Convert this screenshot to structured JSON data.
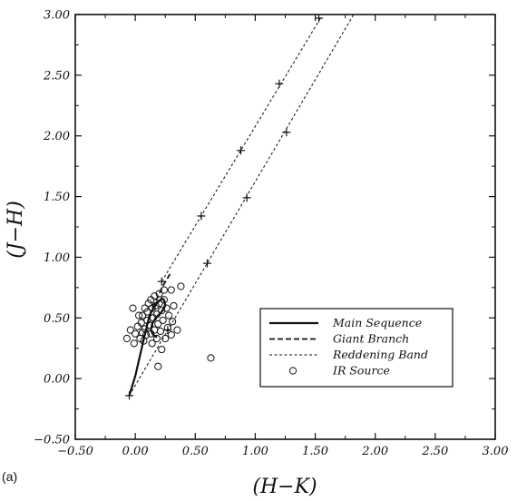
{
  "chart_data": {
    "type": "scatter",
    "panel_label": "(a)",
    "xlabel": "(H−K)",
    "ylabel": "(J−H)",
    "xlim": [
      -0.5,
      3.0
    ],
    "ylim": [
      -0.5,
      3.0
    ],
    "x_ticks": [
      "−0.50",
      "0.00",
      "0.50",
      "1.00",
      "1.50",
      "2.00",
      "2.50",
      "3.00"
    ],
    "y_ticks": [
      "−0.50",
      "0.00",
      "0.50",
      "1.00",
      "1.50",
      "2.00",
      "2.50",
      "3.00"
    ],
    "x_tick_values": [
      -0.5,
      0.0,
      0.5,
      1.0,
      1.5,
      2.0,
      2.5,
      3.0
    ],
    "y_tick_values": [
      -0.5,
      0.0,
      0.5,
      1.0,
      1.5,
      2.0,
      2.5,
      3.0
    ],
    "grid": false,
    "legend_position": "lower-right",
    "series": [
      {
        "name": "Main Sequence",
        "style": "solid",
        "x": [
          -0.05,
          0.0,
          0.03,
          0.06,
          0.08,
          0.09,
          0.1,
          0.12,
          0.15,
          0.18,
          0.2,
          0.22,
          0.24,
          0.25,
          0.22,
          0.17,
          0.14,
          0.13,
          0.15,
          0.18
        ],
        "y": [
          -0.14,
          0.02,
          0.15,
          0.28,
          0.36,
          0.4,
          0.45,
          0.52,
          0.58,
          0.62,
          0.64,
          0.66,
          0.65,
          0.6,
          0.55,
          0.5,
          0.45,
          0.4,
          0.36,
          0.34
        ]
      },
      {
        "name": "Giant Branch",
        "style": "dashed",
        "x": [
          0.12,
          0.15,
          0.18,
          0.2,
          0.22,
          0.24,
          0.27,
          0.3
        ],
        "y": [
          0.52,
          0.6,
          0.66,
          0.7,
          0.74,
          0.78,
          0.83,
          0.88
        ]
      },
      {
        "name": "Reddening Band",
        "style": "dotted",
        "lines": [
          {
            "x": [
              0.22,
              1.55
            ],
            "y": [
              0.8,
              2.98
            ]
          },
          {
            "x": [
              -0.05,
              1.82
            ],
            "y": [
              -0.14,
              3.0
            ]
          }
        ],
        "markers": [
          {
            "x": 0.22,
            "y": 0.8
          },
          {
            "x": 0.55,
            "y": 1.34
          },
          {
            "x": 0.88,
            "y": 1.88
          },
          {
            "x": 1.2,
            "y": 2.43
          },
          {
            "x": 1.53,
            "y": 2.97
          },
          {
            "x": -0.05,
            "y": -0.14
          },
          {
            "x": 0.27,
            "y": 0.4
          },
          {
            "x": 0.6,
            "y": 0.95
          },
          {
            "x": 0.93,
            "y": 1.49
          },
          {
            "x": 1.26,
            "y": 2.03
          }
        ]
      },
      {
        "name": "IR Source",
        "style": "open-circle",
        "points": [
          [
            -0.07,
            0.33
          ],
          [
            -0.04,
            0.4
          ],
          [
            -0.02,
            0.58
          ],
          [
            -0.01,
            0.29
          ],
          [
            0.0,
            0.37
          ],
          [
            0.02,
            0.43
          ],
          [
            0.04,
            0.33
          ],
          [
            0.05,
            0.46
          ],
          [
            0.06,
            0.52
          ],
          [
            0.06,
            0.38
          ],
          [
            0.07,
            0.31
          ],
          [
            0.08,
            0.41
          ],
          [
            0.09,
            0.36
          ],
          [
            0.1,
            0.48
          ],
          [
            0.1,
            0.55
          ],
          [
            0.11,
            0.62
          ],
          [
            0.12,
            0.44
          ],
          [
            0.13,
            0.37
          ],
          [
            0.13,
            0.65
          ],
          [
            0.14,
            0.58
          ],
          [
            0.15,
            0.5
          ],
          [
            0.16,
            0.4
          ],
          [
            0.16,
            0.68
          ],
          [
            0.17,
            0.6
          ],
          [
            0.18,
            0.53
          ],
          [
            0.18,
            0.33
          ],
          [
            0.19,
            0.45
          ],
          [
            0.2,
            0.7
          ],
          [
            0.2,
            0.62
          ],
          [
            0.21,
            0.39
          ],
          [
            0.22,
            0.56
          ],
          [
            0.22,
            0.24
          ],
          [
            0.23,
            0.48
          ],
          [
            0.24,
            0.65
          ],
          [
            0.25,
            0.33
          ],
          [
            0.26,
            0.58
          ],
          [
            0.27,
            0.42
          ],
          [
            0.28,
            0.52
          ],
          [
            0.3,
            0.73
          ],
          [
            0.3,
            0.36
          ],
          [
            0.32,
            0.6
          ],
          [
            0.35,
            0.4
          ],
          [
            0.38,
            0.76
          ],
          [
            0.19,
            0.1
          ],
          [
            0.63,
            0.17
          ],
          [
            0.08,
            0.58
          ],
          [
            0.03,
            0.52
          ],
          [
            0.14,
            0.29
          ],
          [
            0.24,
            0.73
          ],
          [
            0.31,
            0.47
          ]
        ]
      }
    ],
    "legend": [
      {
        "label": "Main Sequence",
        "style": "solid"
      },
      {
        "label": "Giant Branch",
        "style": "dashed"
      },
      {
        "label": "Reddening Band",
        "style": "dotted"
      },
      {
        "label": "IR Source",
        "style": "open-circle"
      }
    ]
  }
}
